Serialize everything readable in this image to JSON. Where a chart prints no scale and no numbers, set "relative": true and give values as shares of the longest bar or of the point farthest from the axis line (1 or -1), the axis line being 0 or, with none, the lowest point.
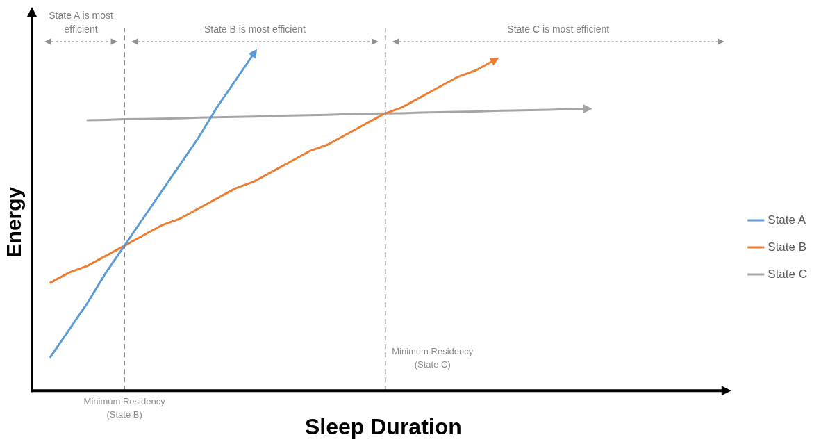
{
  "chart_data": {
    "type": "line",
    "relative": true,
    "xlabel": "Sleep Duration",
    "ylabel": "Energy",
    "legend": "right",
    "categories": [
      null,
      null,
      null,
      null,
      null,
      null,
      null,
      null,
      null,
      null,
      null,
      null,
      null,
      null,
      null,
      null,
      null,
      null,
      null,
      null,
      null,
      null,
      null,
      null,
      null,
      null,
      null,
      null,
      null,
      null,
      null,
      null,
      null,
      null,
      null,
      null,
      null,
      null,
      null
    ],
    "series": [
      {
        "name": "State A",
        "color": "#5b9bd5",
        "values": [
          null,
          0.1,
          0.18,
          0.26,
          0.35,
          0.43,
          0.51,
          0.59,
          0.67,
          0.75,
          0.84,
          0.92,
          1.0,
          null,
          null,
          null,
          null,
          null,
          null,
          null,
          null,
          null,
          null,
          null,
          null,
          null,
          null,
          null,
          null,
          null,
          null,
          null,
          null,
          null,
          null,
          null,
          null,
          null,
          null
        ]
      },
      {
        "name": "State B",
        "color": "#ed7d31",
        "values": [
          null,
          0.32,
          0.35,
          0.37,
          0.4,
          0.43,
          0.46,
          0.49,
          0.51,
          0.54,
          0.57,
          0.6,
          0.62,
          0.65,
          0.68,
          0.71,
          0.73,
          0.76,
          0.79,
          0.82,
          0.84,
          0.87,
          0.9,
          0.93,
          0.95,
          0.98,
          null,
          null,
          null,
          null,
          null,
          null,
          null,
          null,
          null,
          null,
          null,
          null,
          null
        ]
      },
      {
        "name": "State C",
        "color": "#a5a5a5",
        "values": [
          null,
          null,
          null,
          0.802,
          0.803,
          0.805,
          0.806,
          0.807,
          0.808,
          0.81,
          0.811,
          0.812,
          0.813,
          0.815,
          0.816,
          0.817,
          0.818,
          0.82,
          0.821,
          0.822,
          0.823,
          0.825,
          0.826,
          0.827,
          0.828,
          0.83,
          0.831,
          0.832,
          0.833,
          0.835,
          0.836,
          null,
          null,
          null,
          null,
          null,
          null,
          null,
          null
        ]
      }
    ],
    "annotations": [
      "State A is most efficient",
      "State B is most efficient",
      "State C is most efficient",
      "Minimum Residency (State B)",
      "Minimum Residency (State C)"
    ]
  }
}
